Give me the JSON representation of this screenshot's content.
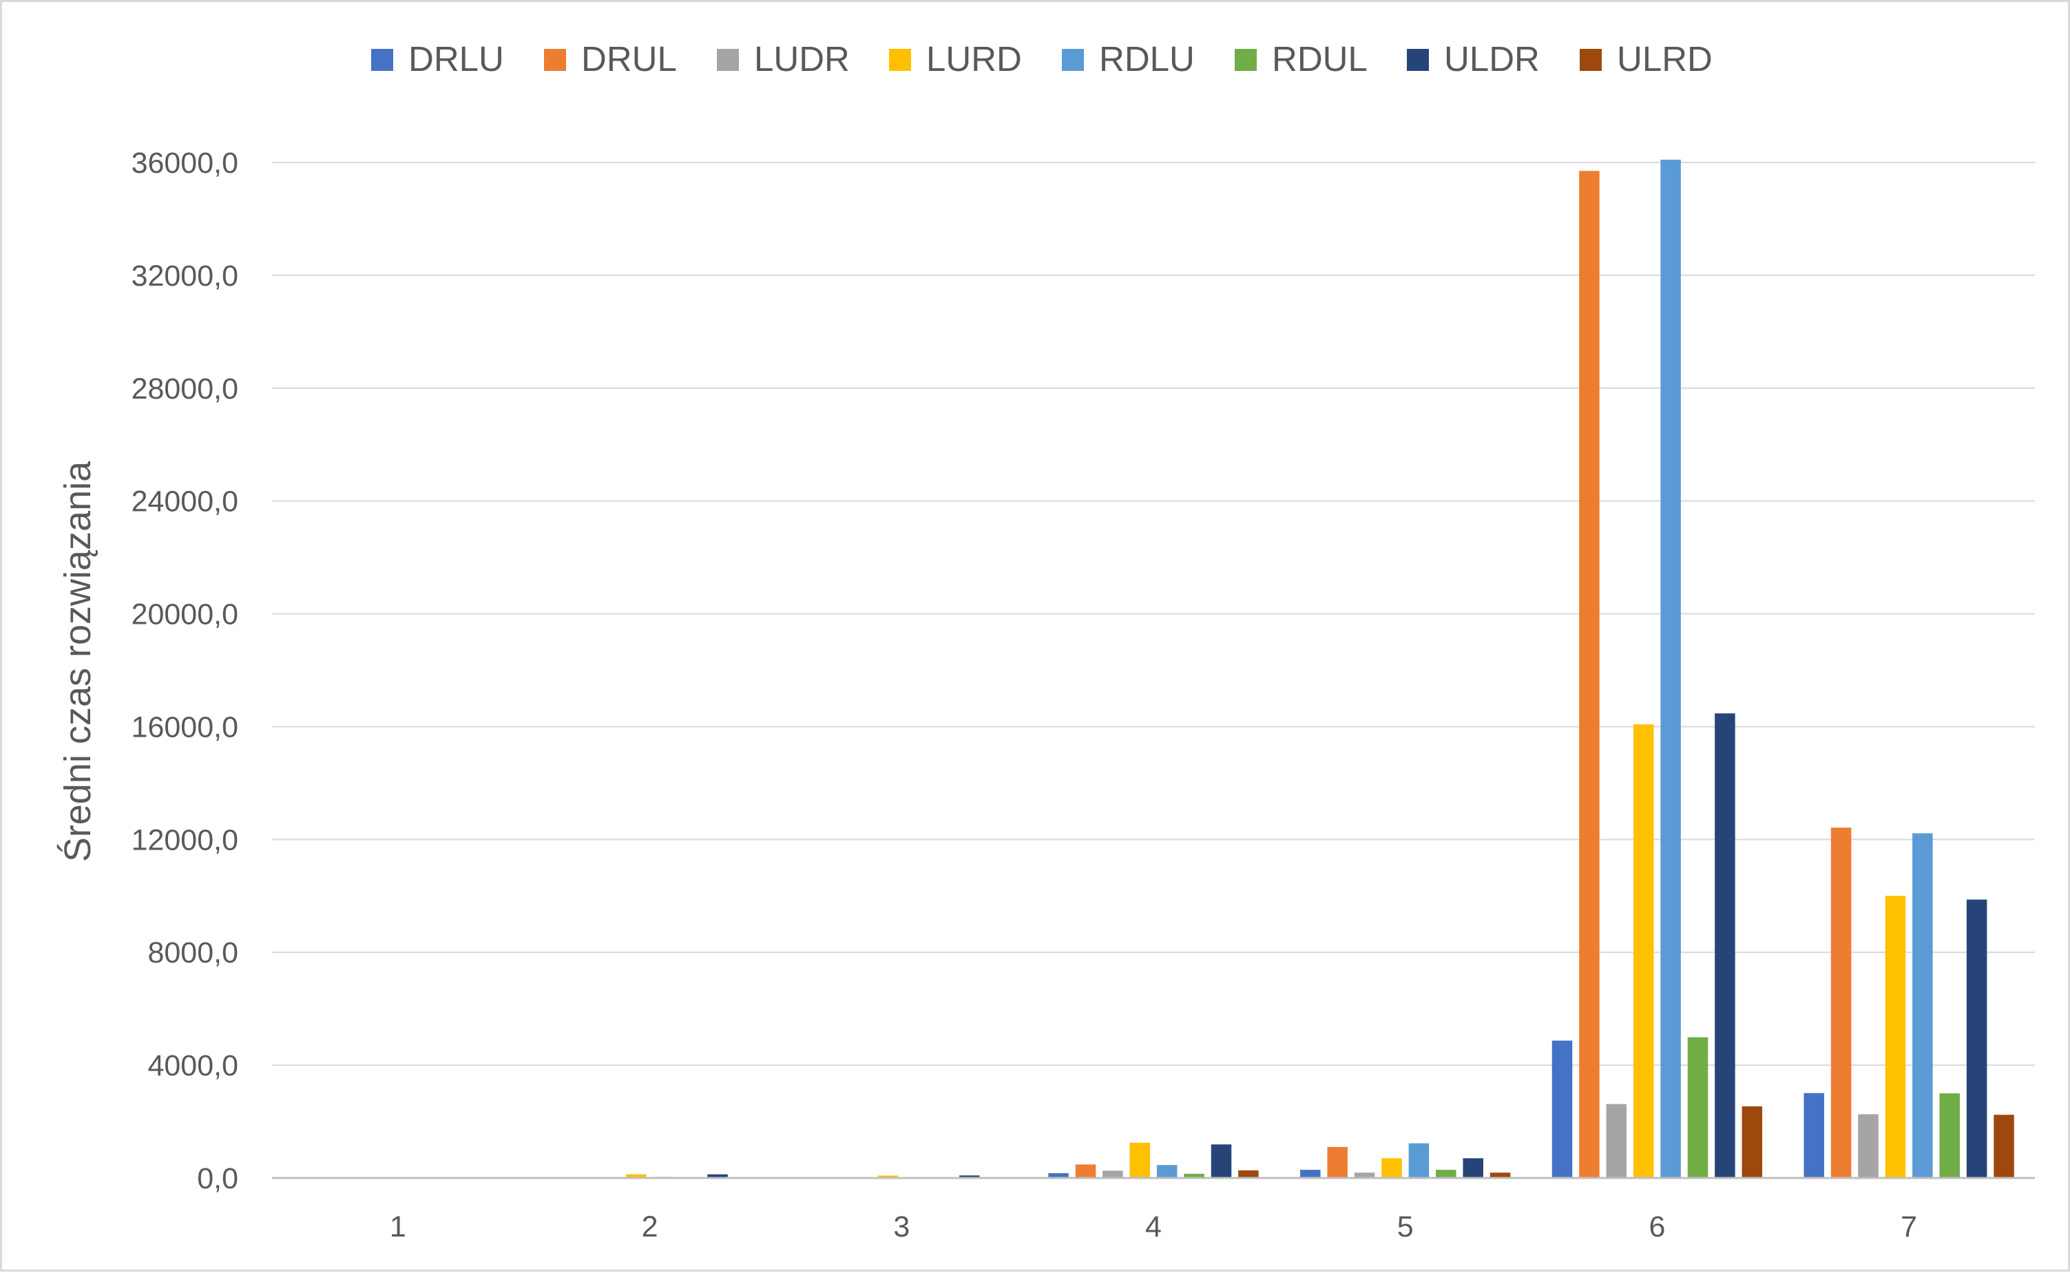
{
  "chart_data": {
    "type": "bar",
    "title": "",
    "xlabel": "",
    "ylabel": "Średni czas rozwiązania",
    "categories": [
      "1",
      "2",
      "3",
      "4",
      "5",
      "6",
      "7"
    ],
    "ylim": [
      0,
      36000
    ],
    "ytick_values": [
      0,
      4000,
      8000,
      12000,
      16000,
      20000,
      24000,
      28000,
      32000,
      36000
    ],
    "ytick_labels": [
      "0,0",
      "4000,0",
      "8000,0",
      "12000,0",
      "16000,0",
      "20000,0",
      "24000,0",
      "28000,0",
      "32000,0",
      "36000,0"
    ],
    "grid": true,
    "legend_position": "top",
    "series": [
      {
        "name": "DRLU",
        "color": "#4472c4",
        "values": [
          2,
          20,
          15,
          170,
          290,
          4870,
          3010
        ]
      },
      {
        "name": "DRUL",
        "color": "#ed7d31",
        "values": [
          4,
          30,
          25,
          480,
          1100,
          35700,
          12420
        ]
      },
      {
        "name": "LUDR",
        "color": "#a5a5a5",
        "values": [
          2,
          15,
          10,
          260,
          190,
          2620,
          2260
        ]
      },
      {
        "name": "LURD",
        "color": "#ffc000",
        "values": [
          5,
          130,
          85,
          1250,
          700,
          16080,
          10000
        ]
      },
      {
        "name": "RDLU",
        "color": "#5b9bd5",
        "values": [
          3,
          40,
          30,
          460,
          1230,
          36100,
          12220
        ]
      },
      {
        "name": "RDUL",
        "color": "#70ad47",
        "values": [
          2,
          12,
          10,
          150,
          290,
          4990,
          3000
        ]
      },
      {
        "name": "ULDR",
        "color": "#264478",
        "values": [
          4,
          130,
          90,
          1190,
          700,
          16470,
          9870
        ]
      },
      {
        "name": "ULRD",
        "color": "#9e480e",
        "values": [
          2,
          20,
          15,
          270,
          190,
          2540,
          2240
        ]
      }
    ]
  }
}
